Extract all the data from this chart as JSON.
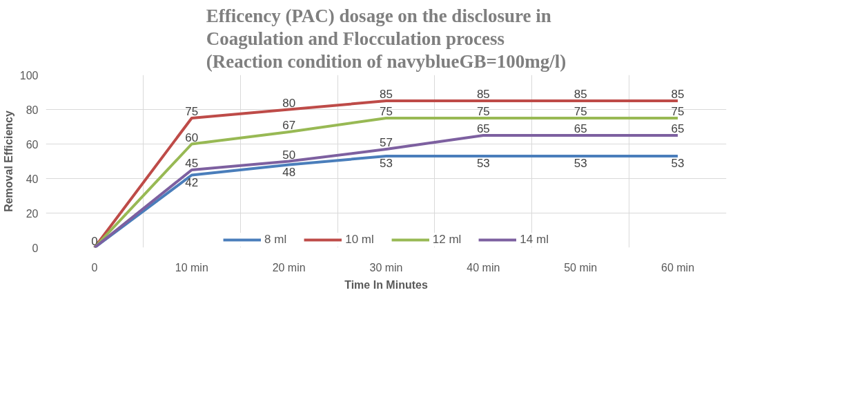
{
  "chart_data": {
    "type": "line",
    "title": "Efficency (PAC) dosage on the disclosure in\nCoagulation and Flocculation process\n(Reaction condition of navyblueGB=100mg/l)",
    "xlabel": "Time In Minutes",
    "ylabel": "Removal Efficiency",
    "categories": [
      "0",
      "10 min",
      "20 min",
      "30 min",
      "40 min",
      "50 min",
      "60 min"
    ],
    "series": [
      {
        "name": "8 ml",
        "color": "#4a7ebb",
        "values": [
          0,
          42,
          48,
          53,
          53,
          53,
          53
        ],
        "value_labels": [
          null,
          "42",
          "48",
          "53",
          "53",
          "53",
          "53"
        ]
      },
      {
        "name": "10 ml",
        "color": "#be4b48",
        "values": [
          0,
          75,
          80,
          85,
          85,
          85,
          85
        ],
        "value_labels": [
          "0",
          "75",
          "80",
          "85",
          "85",
          "85",
          "85"
        ]
      },
      {
        "name": "12 ml",
        "color": "#98b954",
        "values": [
          0,
          60,
          67,
          75,
          75,
          75,
          75
        ],
        "value_labels": [
          null,
          "60",
          "67",
          "75",
          "75",
          "75",
          "75"
        ]
      },
      {
        "name": "14 ml",
        "color": "#7d60a0",
        "values": [
          0,
          45,
          50,
          57,
          65,
          65,
          65
        ],
        "value_labels": [
          null,
          "45",
          "50",
          "57",
          "65",
          "65",
          "65"
        ]
      }
    ],
    "ylim": [
      0,
      100
    ],
    "yticks": [
      0,
      20,
      40,
      60,
      80,
      100
    ],
    "grid": true,
    "legend": "bottom",
    "marker": "none",
    "line_style": "solid"
  }
}
